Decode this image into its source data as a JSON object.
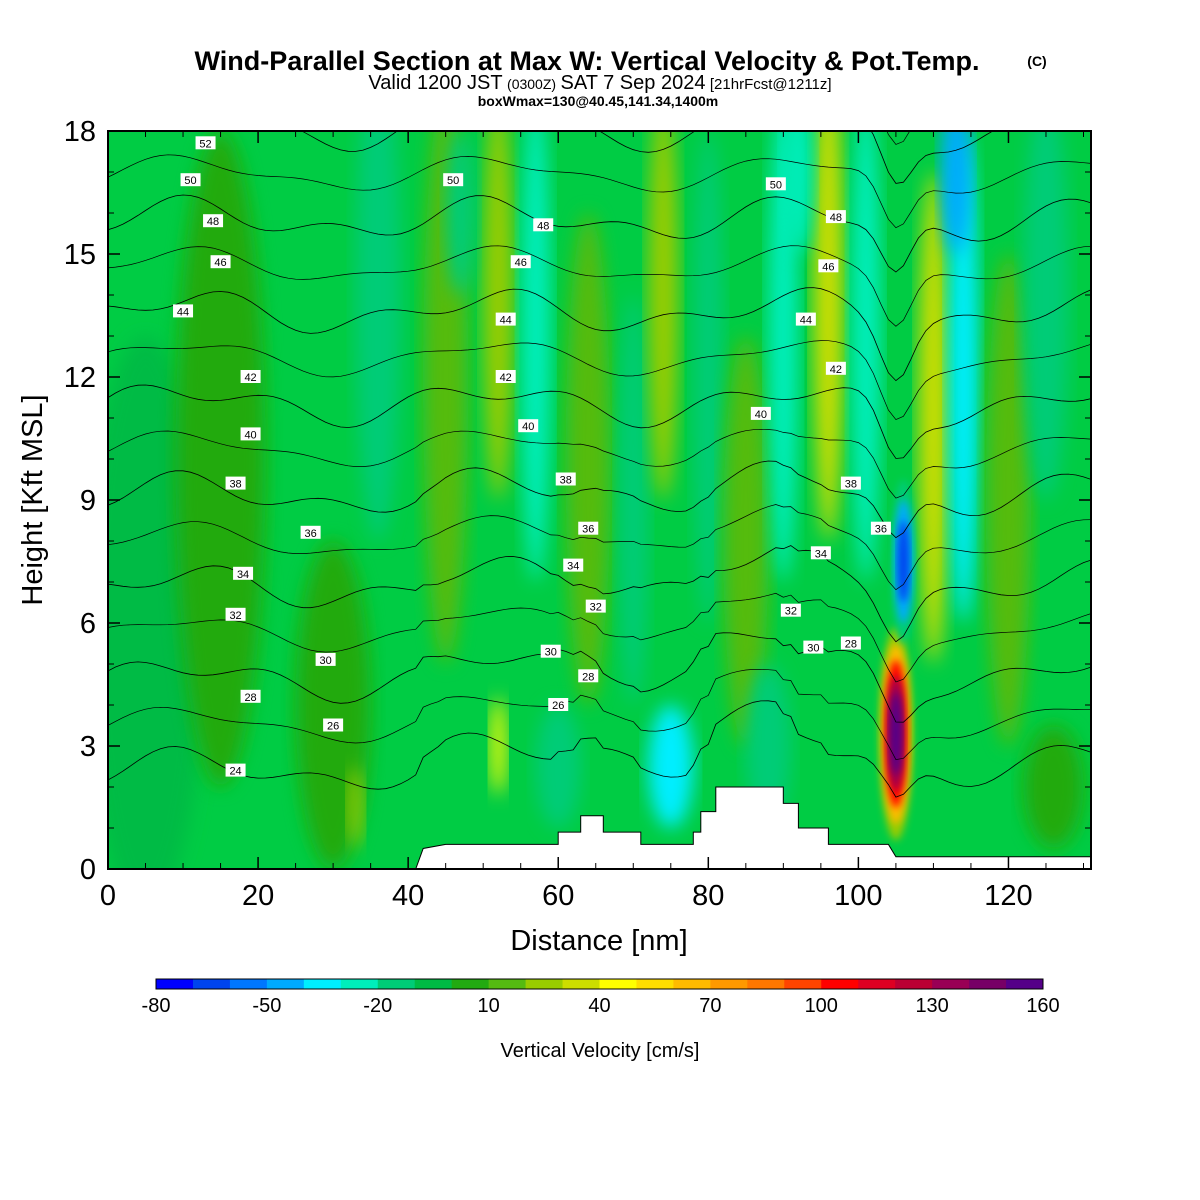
{
  "title": {
    "main": "Wind-Parallel Section at Max W: Vertical Velocity & Pot.Temp.",
    "copyright": "(C)",
    "valid_prefix": "Valid 1200 JST",
    "valid_utc": "(0300Z)",
    "valid_date": "SAT 7 Sep 2024",
    "forecast": "[21hrFcst@1211z]",
    "box_info": "boxWmax=130@40.45,141.34,1400m"
  },
  "chart_data": {
    "type": "heatmap",
    "xlabel": "Distance [nm]",
    "ylabel": "Height [Kft MSL]",
    "xlim": [
      0,
      131
    ],
    "ylim": [
      0,
      18
    ],
    "x_ticks": [
      0,
      20,
      40,
      60,
      80,
      100,
      120
    ],
    "y_ticks": [
      0,
      3,
      6,
      9,
      12,
      15,
      18
    ],
    "colorbar": {
      "label": "Vertical Velocity [cm/s]",
      "tick_labels": [
        "-80",
        "-50",
        "-20",
        "10",
        "40",
        "70",
        "100",
        "130",
        "160"
      ],
      "bins": [
        -80,
        -70,
        -60,
        -50,
        -40,
        -30,
        -20,
        -10,
        0,
        10,
        20,
        30,
        40,
        50,
        60,
        70,
        80,
        90,
        100,
        110,
        120,
        130,
        140,
        150,
        160
      ],
      "colors": [
        "#0000ff",
        "#0044ee",
        "#0077ff",
        "#00aaff",
        "#00eeff",
        "#00eebb",
        "#00cc77",
        "#00bb44",
        "#22aa11",
        "#55bb11",
        "#99cc00",
        "#ccdd00",
        "#ffff00",
        "#ffdd00",
        "#ffbb00",
        "#ff9900",
        "#ff7700",
        "#ff4400",
        "#ff0000",
        "#dd0022",
        "#bb0033",
        "#990055",
        "#770066",
        "#550088"
      ]
    },
    "contour_series": "Pot.Temp.",
    "contour_levels": [
      24,
      26,
      28,
      30,
      32,
      34,
      36,
      38,
      40,
      42,
      44,
      46,
      48,
      50,
      52
    ],
    "contour_labels": [
      {
        "text": "52",
        "x": 13,
        "y": 17.7
      },
      {
        "text": "50",
        "x": 11,
        "y": 16.8
      },
      {
        "text": "48",
        "x": 14,
        "y": 15.8
      },
      {
        "text": "46",
        "x": 15,
        "y": 14.8
      },
      {
        "text": "44",
        "x": 10,
        "y": 13.6
      },
      {
        "text": "42",
        "x": 19,
        "y": 12.0
      },
      {
        "text": "40",
        "x": 19,
        "y": 10.6
      },
      {
        "text": "38",
        "x": 17,
        "y": 9.4
      },
      {
        "text": "36",
        "x": 27,
        "y": 8.2
      },
      {
        "text": "34",
        "x": 18,
        "y": 7.2
      },
      {
        "text": "32",
        "x": 17,
        "y": 6.2
      },
      {
        "text": "30",
        "x": 29,
        "y": 5.1
      },
      {
        "text": "28",
        "x": 19,
        "y": 4.2
      },
      {
        "text": "26",
        "x": 30,
        "y": 3.5
      },
      {
        "text": "24",
        "x": 17,
        "y": 2.4
      },
      {
        "text": "50",
        "x": 46,
        "y": 16.8
      },
      {
        "text": "48",
        "x": 58,
        "y": 15.7
      },
      {
        "text": "46",
        "x": 55,
        "y": 14.8
      },
      {
        "text": "44",
        "x": 53,
        "y": 13.4
      },
      {
        "text": "42",
        "x": 53,
        "y": 12.0
      },
      {
        "text": "40",
        "x": 56,
        "y": 10.8
      },
      {
        "text": "38",
        "x": 61,
        "y": 9.5
      },
      {
        "text": "36",
        "x": 64,
        "y": 8.3
      },
      {
        "text": "34",
        "x": 62,
        "y": 7.4
      },
      {
        "text": "32",
        "x": 65,
        "y": 6.4
      },
      {
        "text": "30",
        "x": 59,
        "y": 5.3
      },
      {
        "text": "28",
        "x": 64,
        "y": 4.7
      },
      {
        "text": "26",
        "x": 60,
        "y": 4.0
      },
      {
        "text": "50",
        "x": 89,
        "y": 16.7
      },
      {
        "text": "48",
        "x": 97,
        "y": 15.9
      },
      {
        "text": "46",
        "x": 96,
        "y": 14.7
      },
      {
        "text": "44",
        "x": 93,
        "y": 13.4
      },
      {
        "text": "42",
        "x": 97,
        "y": 12.2
      },
      {
        "text": "40",
        "x": 87,
        "y": 11.1
      },
      {
        "text": "38",
        "x": 99,
        "y": 9.4
      },
      {
        "text": "36",
        "x": 103,
        "y": 8.3
      },
      {
        "text": "34",
        "x": 95,
        "y": 7.7
      },
      {
        "text": "32",
        "x": 91,
        "y": 6.3
      },
      {
        "text": "30",
        "x": 94,
        "y": 5.4
      },
      {
        "text": "28",
        "x": 99,
        "y": 5.5
      }
    ],
    "terrain": [
      [
        0,
        0
      ],
      [
        41,
        0
      ],
      [
        42,
        0.5
      ],
      [
        45,
        0.6
      ],
      [
        60,
        0.6
      ],
      [
        60,
        0.9
      ],
      [
        63,
        0.9
      ],
      [
        63,
        1.3
      ],
      [
        66,
        1.3
      ],
      [
        66,
        0.9
      ],
      [
        71,
        0.9
      ],
      [
        71,
        0.6
      ],
      [
        78,
        0.6
      ],
      [
        78,
        0.9
      ],
      [
        79,
        0.9
      ],
      [
        79,
        1.4
      ],
      [
        81,
        1.4
      ],
      [
        81,
        2.0
      ],
      [
        90,
        2.0
      ],
      [
        90,
        1.6
      ],
      [
        92,
        1.6
      ],
      [
        92,
        1.0
      ],
      [
        96,
        1.0
      ],
      [
        96,
        0.6
      ],
      [
        104,
        0.6
      ],
      [
        105,
        0.3
      ],
      [
        131,
        0.3
      ]
    ],
    "features": [
      {
        "type": "updraft",
        "x": 105,
        "y": 3.3,
        "max": 150
      },
      {
        "type": "downdraft",
        "x": 106,
        "y": 7.5,
        "min": -70
      }
    ]
  }
}
